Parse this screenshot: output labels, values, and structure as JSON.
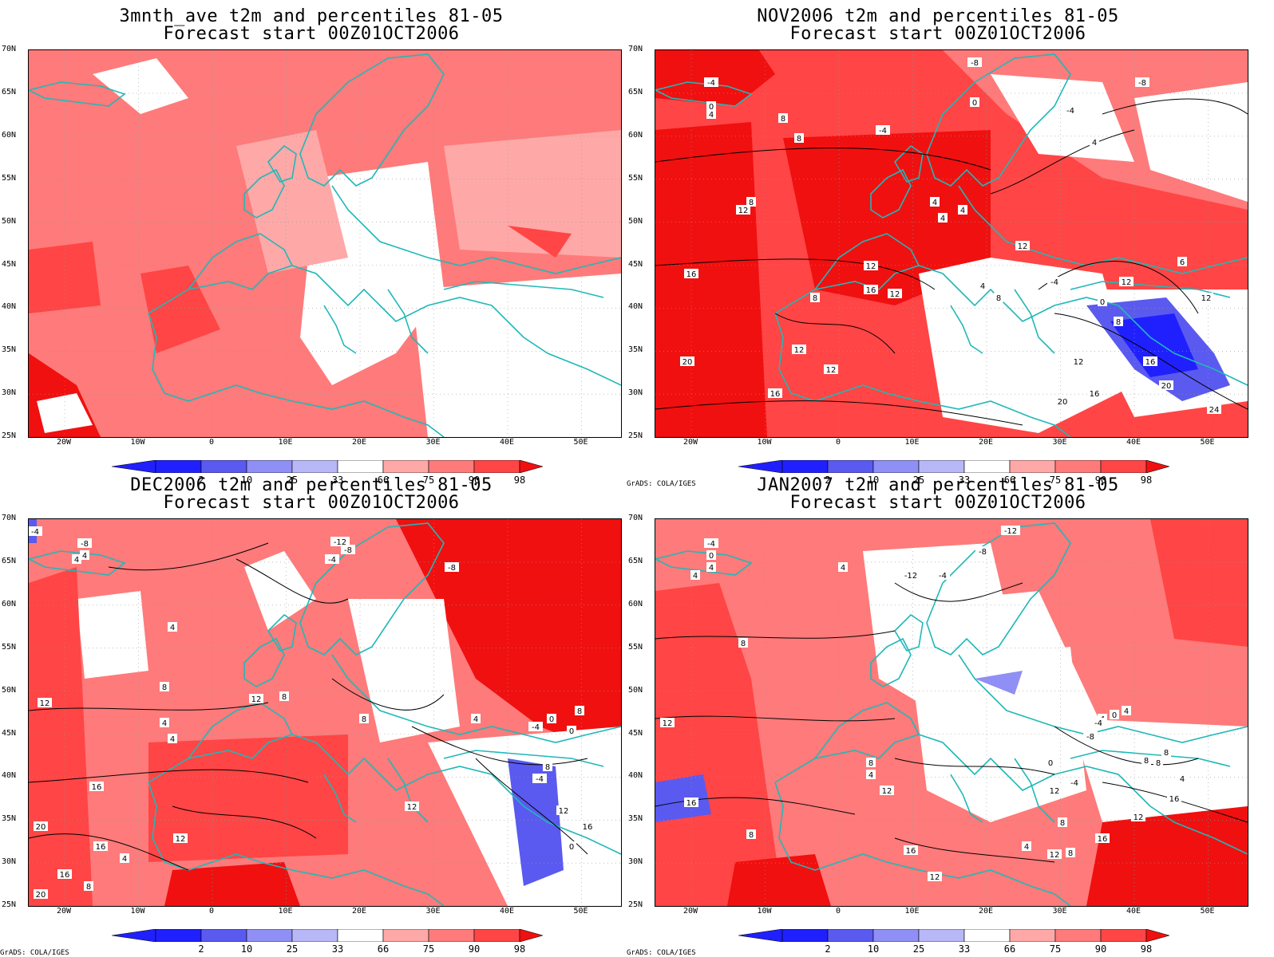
{
  "panels": [
    {
      "title1": "3mnth_ave t2m and percentiles 81-05",
      "title2": "Forecast start 00Z01OCT2006",
      "credit": ""
    },
    {
      "title1": "NOV2006 t2m and percentiles 81-05",
      "title2": "Forecast start 00Z01OCT2006",
      "credit": "GrADS: COLA/IGES"
    },
    {
      "title1": "DEC2006 t2m and percentiles 81-05",
      "title2": "Forecast start 00Z01OCT2006",
      "credit": "GrADS: COLA/IGES"
    },
    {
      "title1": "JAN2007 t2m and percentiles 81-05",
      "title2": "Forecast start 00Z01OCT2006",
      "credit": "GrADS: COLA/IGES"
    }
  ],
  "lat_labels": [
    "70N",
    "65N",
    "60N",
    "55N",
    "50N",
    "45N",
    "40N",
    "35N",
    "30N",
    "25N"
  ],
  "lon_labels": [
    "20W",
    "10W",
    "0",
    "10E",
    "20E",
    "30E",
    "40E",
    "50E"
  ],
  "colorbar": {
    "labels": [
      "2",
      "10",
      "25",
      "33",
      "66",
      "75",
      "90",
      "98"
    ],
    "colors": [
      "#2020ff",
      "#5a5af0",
      "#8f8ff5",
      "#b8b8f8",
      "#ffffff",
      "#ffa8a8",
      "#ff7a7a",
      "#ff4545",
      "#f01010"
    ]
  },
  "contour_labels": {
    "p1": [
      "-4",
      "0",
      "4",
      "8",
      "8",
      "8",
      "12",
      "4",
      "4",
      "4",
      "12",
      "12",
      "16",
      "8",
      "16",
      "12",
      "12",
      "20",
      "16",
      "12",
      "8",
      "4",
      "16",
      "12",
      "20",
      "20",
      "16",
      "24",
      "-4",
      "-8",
      "-8",
      "-4",
      "0",
      "4",
      "6",
      "12",
      "8",
      "12",
      "0",
      "-4"
    ],
    "p2": [
      "-4",
      "-8",
      "4",
      "4",
      "-12",
      "-8",
      "-4",
      "-8",
      "4",
      "8",
      "12",
      "16",
      "20",
      "4",
      "8",
      "12",
      "16",
      "8",
      "12",
      "4",
      "0",
      "8",
      "-4",
      "-4",
      "0",
      "12",
      "8",
      "16",
      "0",
      "12",
      "4",
      "16",
      "20",
      "8",
      "4"
    ],
    "p3": [
      "-4",
      "0",
      "4",
      "4",
      "4",
      "8",
      "12",
      "16",
      "-12",
      "-8",
      "-4",
      "-12",
      "8",
      "4",
      "8",
      "12",
      "16",
      "12",
      "4",
      "8",
      "12",
      "16",
      "-4",
      "0",
      "4",
      "8",
      "4",
      "12",
      "16",
      "-8",
      "4",
      "0",
      "-4",
      "8",
      "8",
      "8",
      "12"
    ]
  }
}
